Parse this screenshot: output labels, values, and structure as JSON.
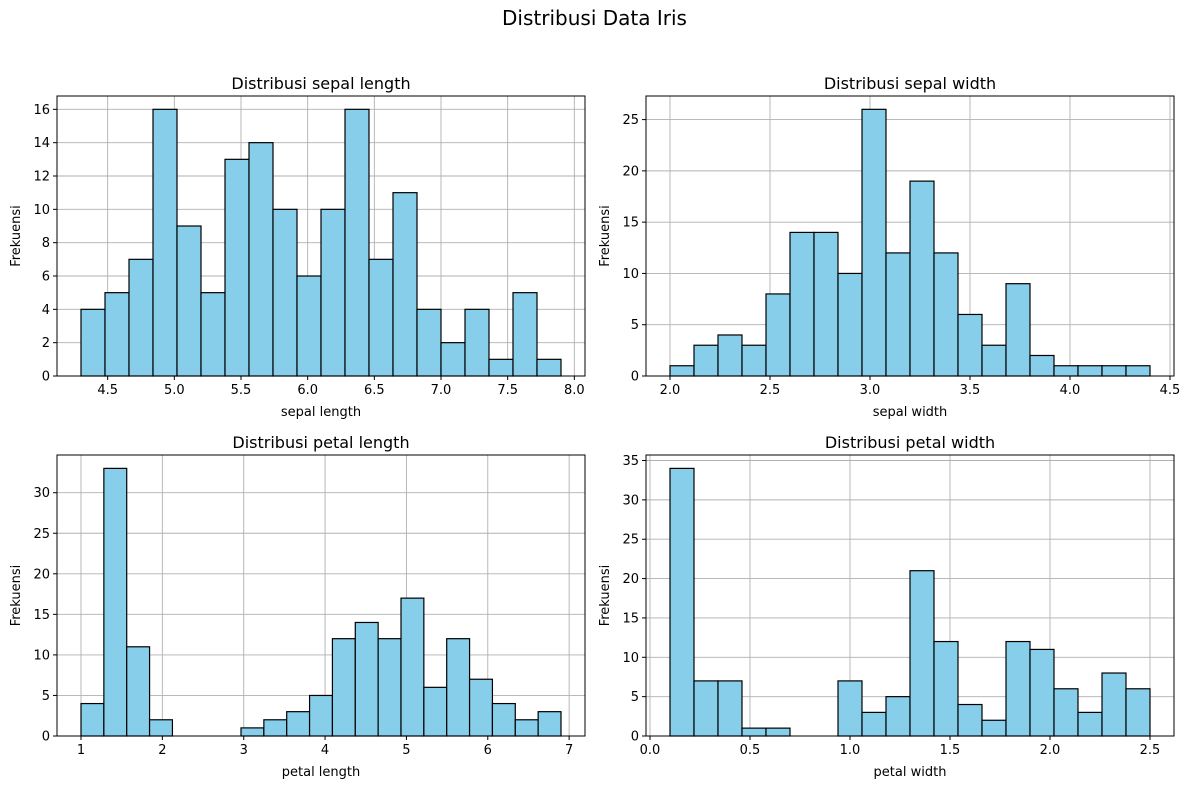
{
  "figure": {
    "title": "Distribusi Data Iris"
  },
  "chart_data": [
    {
      "type": "bar",
      "title": "Distribusi sepal length",
      "xlabel": "sepal length",
      "ylabel": "Frekuensi",
      "bar_color": "#87ceeb",
      "edge_color": "#000000",
      "grid": true,
      "xlim": [
        4.12,
        8.08
      ],
      "ylim": [
        0,
        16.8
      ],
      "xticks": [
        4.5,
        5.0,
        5.5,
        6.0,
        6.5,
        7.0,
        7.5,
        8.0
      ],
      "xtick_labels": [
        "4.5",
        "5.0",
        "5.5",
        "6.0",
        "6.5",
        "7.0",
        "7.5",
        "8.0"
      ],
      "yticks": [
        0,
        2,
        4,
        6,
        8,
        10,
        12,
        14,
        16
      ],
      "ytick_labels": [
        "0",
        "2",
        "4",
        "6",
        "8",
        "10",
        "12",
        "14",
        "16"
      ],
      "bin_start": 4.3,
      "bin_end": 7.9,
      "values": [
        4,
        5,
        7,
        16,
        9,
        5,
        13,
        14,
        10,
        6,
        10,
        16,
        7,
        11,
        4,
        2,
        4,
        1,
        5,
        1
      ]
    },
    {
      "type": "bar",
      "title": "Distribusi sepal width",
      "xlabel": "sepal width",
      "ylabel": "Frekuensi",
      "bar_color": "#87ceeb",
      "edge_color": "#000000",
      "grid": true,
      "xlim": [
        1.88,
        4.52
      ],
      "ylim": [
        0,
        27.3
      ],
      "xticks": [
        2.0,
        2.5,
        3.0,
        3.5,
        4.0,
        4.5
      ],
      "xtick_labels": [
        "2.0",
        "2.5",
        "3.0",
        "3.5",
        "4.0",
        "4.5"
      ],
      "yticks": [
        0,
        5,
        10,
        15,
        20,
        25
      ],
      "ytick_labels": [
        "0",
        "5",
        "10",
        "15",
        "20",
        "25"
      ],
      "bin_start": 2.0,
      "bin_end": 4.4,
      "values": [
        1,
        3,
        4,
        3,
        8,
        14,
        14,
        10,
        26,
        12,
        19,
        12,
        6,
        3,
        9,
        2,
        1,
        1,
        1,
        1
      ]
    },
    {
      "type": "bar",
      "title": "Distribusi petal length",
      "xlabel": "petal length",
      "ylabel": "Frekuensi",
      "bar_color": "#87ceeb",
      "edge_color": "#000000",
      "grid": true,
      "xlim": [
        0.705,
        7.195
      ],
      "ylim": [
        0,
        34.65
      ],
      "xticks": [
        1,
        2,
        3,
        4,
        5,
        6,
        7
      ],
      "xtick_labels": [
        "1",
        "2",
        "3",
        "4",
        "5",
        "6",
        "7"
      ],
      "yticks": [
        0,
        5,
        10,
        15,
        20,
        25,
        30
      ],
      "ytick_labels": [
        "0",
        "5",
        "10",
        "15",
        "20",
        "25",
        "30"
      ],
      "bin_start": 1.0,
      "bin_end": 6.9,
      "values": [
        4,
        33,
        11,
        2,
        0,
        0,
        0,
        1,
        2,
        3,
        5,
        12,
        14,
        12,
        17,
        6,
        12,
        7,
        4,
        2,
        3
      ]
    },
    {
      "type": "bar",
      "title": "Distribusi petal width",
      "xlabel": "petal width",
      "ylabel": "Frekuensi",
      "bar_color": "#87ceeb",
      "edge_color": "#000000",
      "grid": true,
      "xlim": [
        -0.02,
        2.62
      ],
      "ylim": [
        0,
        35.7
      ],
      "xticks": [
        0.0,
        0.5,
        1.0,
        1.5,
        2.0,
        2.5
      ],
      "xtick_labels": [
        "0.0",
        "0.5",
        "1.0",
        "1.5",
        "2.0",
        "2.5"
      ],
      "yticks": [
        0,
        5,
        10,
        15,
        20,
        25,
        30,
        35
      ],
      "ytick_labels": [
        "0",
        "5",
        "10",
        "15",
        "20",
        "25",
        "30",
        "35"
      ],
      "bin_start": 0.1,
      "bin_end": 2.5,
      "values": [
        34,
        7,
        7,
        1,
        1,
        0,
        0,
        7,
        3,
        5,
        21,
        12,
        4,
        2,
        12,
        11,
        6,
        3,
        8,
        6
      ]
    }
  ]
}
